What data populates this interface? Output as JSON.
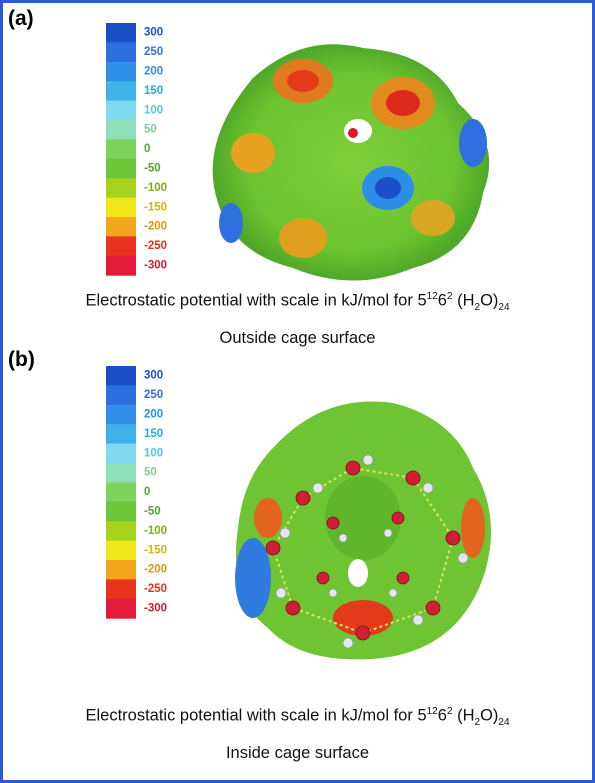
{
  "panels": [
    {
      "label": "(a)",
      "scale": [
        300,
        250,
        200,
        150,
        100,
        50,
        0,
        -50,
        -100,
        -150,
        -200,
        -250,
        -300
      ],
      "caption": {
        "prefix": "Electrostatic potential with scale in kJ/mol for ",
        "base1": "5",
        "sup1": "12",
        "base2": "6",
        "sup2": "2",
        "formula_start": " (H",
        "sub1": "2",
        "formula_end": "O)",
        "sub2": "24"
      },
      "subtitle": "Outside cage surface"
    },
    {
      "label": "(b)",
      "scale": [
        300,
        250,
        200,
        150,
        100,
        50,
        0,
        -50,
        -100,
        -150,
        -200,
        -250,
        -300
      ],
      "caption": {
        "prefix": "Electrostatic potential with scale in kJ/mol for ",
        "base1": "5",
        "sup1": "12",
        "base2": "6",
        "sup2": "2",
        "formula_start": " (H",
        "sub1": "2",
        "formula_end": "O)",
        "sub2": "24"
      },
      "subtitle": "Inside cage surface"
    }
  ]
}
